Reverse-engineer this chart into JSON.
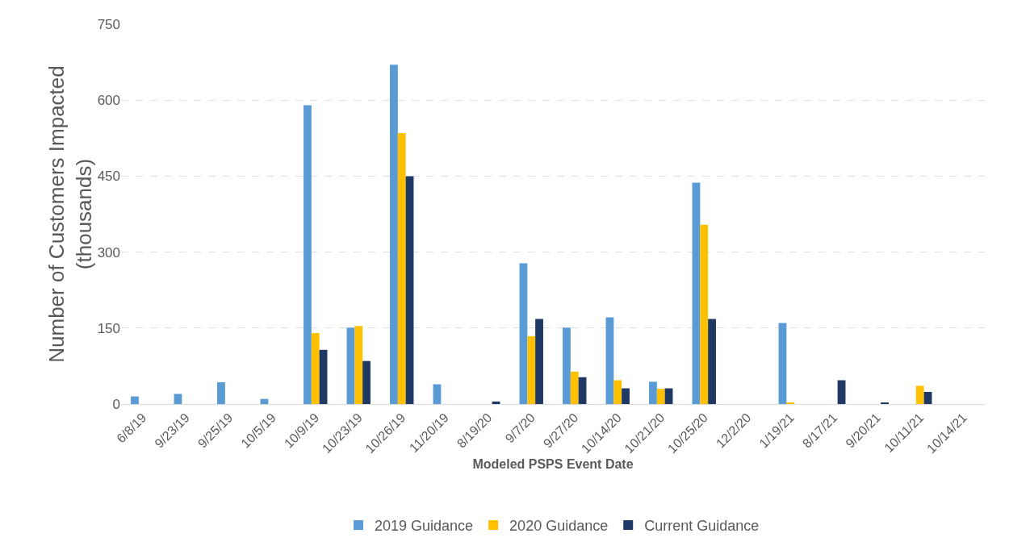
{
  "chart_data": {
    "type": "bar",
    "xlabel": "Modeled PSPS Event Date",
    "ylabel": "Number of Customers Impacted\n(thousands)",
    "categories": [
      "6/8/19",
      "9/23/19",
      "9/25/19",
      "10/5/19",
      "10/9/19",
      "10/23/19",
      "10/26/19",
      "11/20/19",
      "8/19/20",
      "9/7/20",
      "9/27/20",
      "10/14/20",
      "10/21/20",
      "10/25/20",
      "12/2/20",
      "1/19/21",
      "8/17/21",
      "9/20/21",
      "10/11/21",
      "10/14/21"
    ],
    "series": [
      {
        "name": "2019 Guidance",
        "color": "#5b9bd5",
        "values": [
          15,
          20,
          43,
          10,
          590,
          151,
          670,
          39,
          null,
          278,
          151,
          171,
          44,
          437,
          null,
          160,
          null,
          null,
          null,
          null
        ]
      },
      {
        "name": "2020 Guidance",
        "color": "#ffc000",
        "values": [
          null,
          null,
          null,
          null,
          140,
          154,
          535,
          null,
          null,
          134,
          64,
          47,
          30,
          354,
          null,
          3,
          null,
          null,
          36,
          null
        ]
      },
      {
        "name": "Current Guidance",
        "color": "#1f3864",
        "values": [
          null,
          null,
          null,
          null,
          107,
          85,
          450,
          null,
          5,
          168,
          53,
          31,
          31,
          168,
          null,
          null,
          47,
          2,
          24,
          null
        ]
      }
    ],
    "ylim": [
      0,
      750
    ],
    "yticks": [
      0,
      150,
      300,
      450,
      600,
      750
    ],
    "grid": "y",
    "legend": "bottom"
  }
}
